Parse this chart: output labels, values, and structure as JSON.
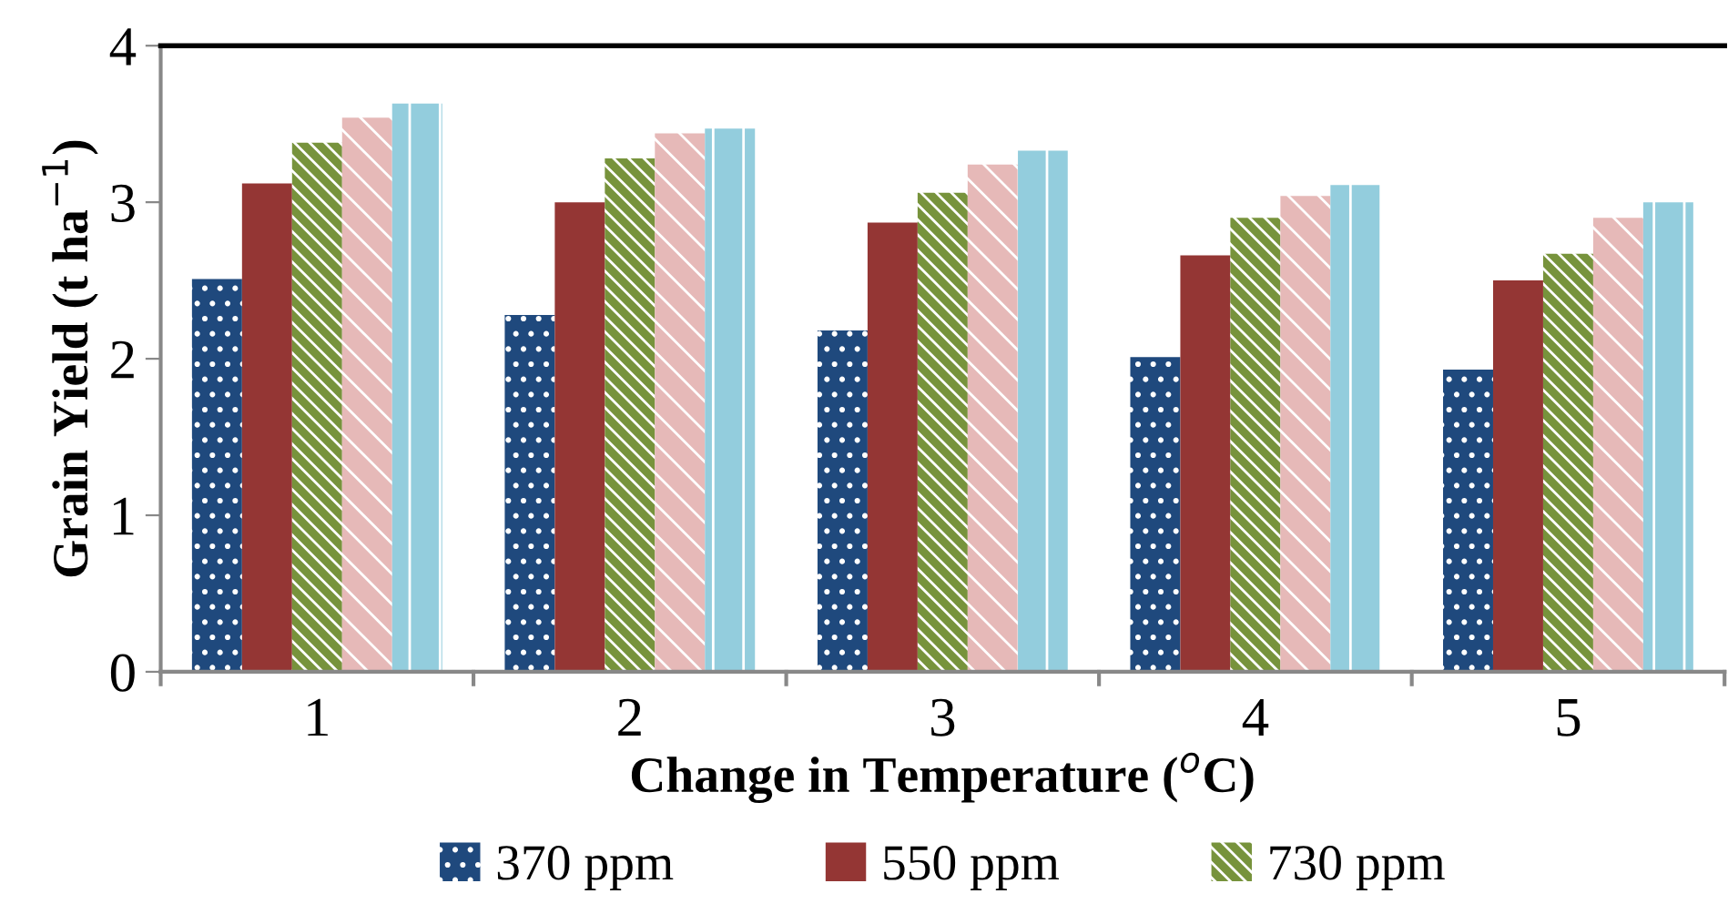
{
  "chart_data": {
    "type": "bar",
    "xlabel": "Change in Temperature ($^{o}$C)",
    "ylabel": "Grain Yield (t ha$^{−1}$)",
    "categories": [
      "1",
      "2",
      "3",
      "4",
      "5"
    ],
    "series": [
      {
        "name": "370 ppm",
        "color": "#1f497d",
        "values": [
          2.51,
          2.28,
          2.18,
          2.01,
          1.93
        ]
      },
      {
        "name": "550 ppm",
        "color": "#943634",
        "values": [
          3.12,
          3.0,
          2.87,
          2.66,
          2.5
        ]
      },
      {
        "name": "730 ppm",
        "color": "#77933c",
        "values": [
          3.38,
          3.28,
          3.06,
          2.9,
          2.67
        ]
      },
      {
        "color": "#e6b9b8",
        "values": [
          3.54,
          3.44,
          3.24,
          3.04,
          2.9
        ]
      },
      {
        "color": "#93cddd",
        "values": [
          3.63,
          3.47,
          3.33,
          3.11,
          3.0
        ]
      }
    ],
    "ylim": [
      0,
      4
    ],
    "yticks": [
      0,
      1,
      2,
      3,
      4
    ],
    "grid": false,
    "legend": "bottom"
  }
}
